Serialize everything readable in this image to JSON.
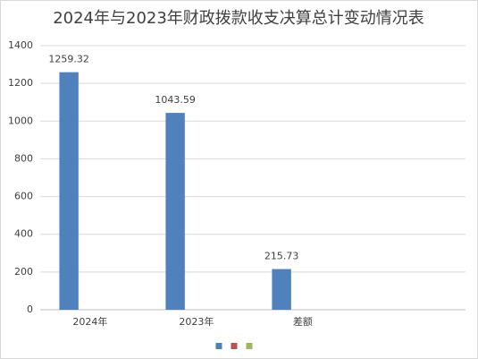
{
  "chart_data": {
    "type": "bar",
    "title": "2024年与2023年财政拨款收支决算总计变动情况表",
    "categories": [
      "2024年",
      "2023年",
      "差额",
      null
    ],
    "series": [
      {
        "color": "#4f81bd",
        "values": [
          1259.32,
          1043.59,
          215.73,
          null
        ]
      },
      {
        "color": "#c0504d",
        "values": [
          null,
          null,
          null,
          null
        ]
      },
      {
        "color": "#9bbb59",
        "values": [
          null,
          null,
          null,
          null
        ]
      }
    ],
    "ylim": [
      0,
      1400
    ],
    "yticks": [
      0,
      200,
      400,
      600,
      800,
      1000,
      1200,
      1400
    ],
    "grid": true,
    "legend": "bottom"
  }
}
